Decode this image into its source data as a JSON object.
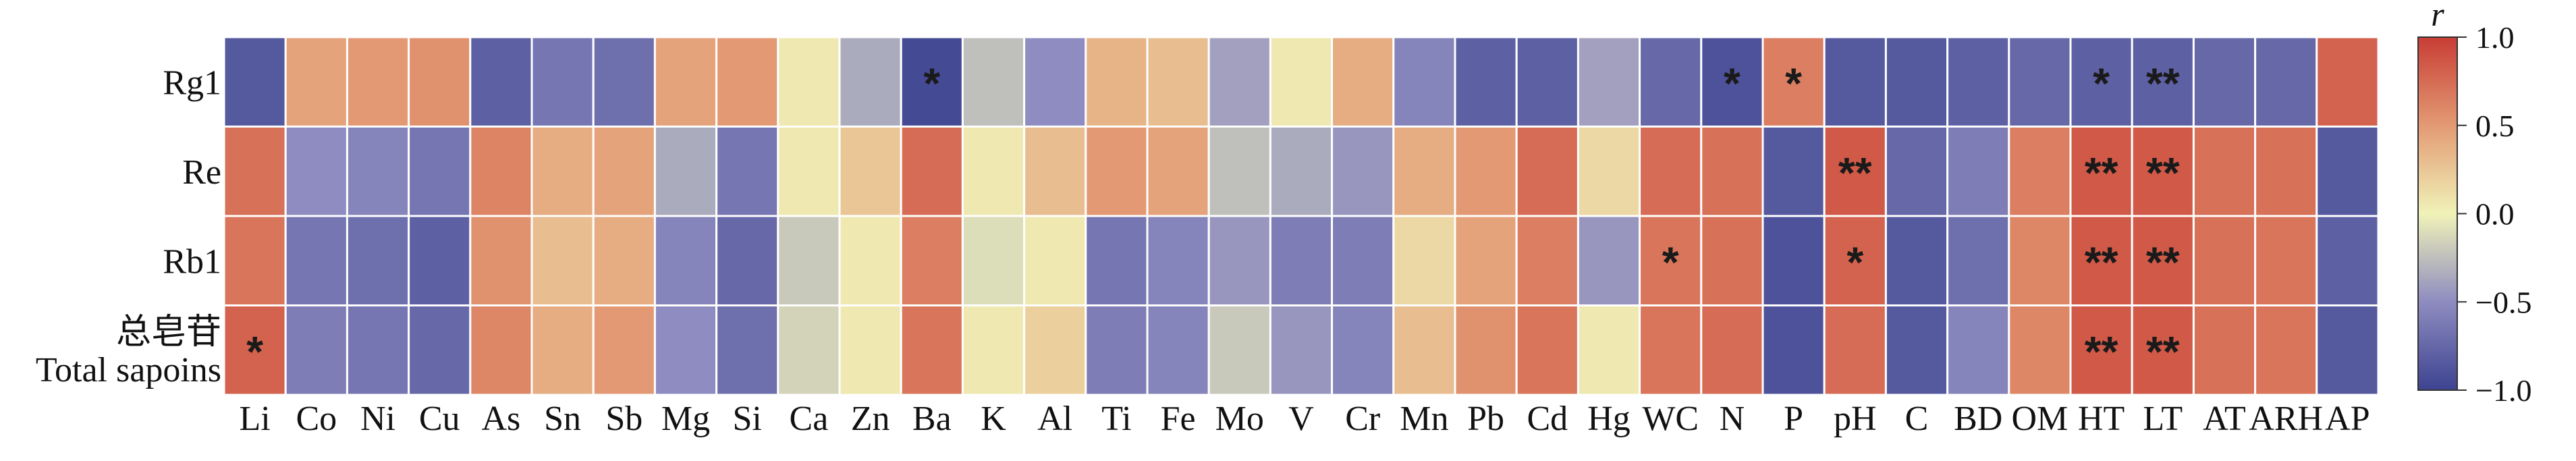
{
  "chart_data": {
    "type": "heatmap",
    "rows": [
      "Rg1",
      "Re",
      "Rb1",
      "总皂苷\nTotal sapoins"
    ],
    "columns": [
      "Li",
      "Co",
      "Ni",
      "Cu",
      "As",
      "Sn",
      "Sb",
      "Mg",
      "Si",
      "Ca",
      "Zn",
      "Ba",
      "K",
      "Al",
      "Ti",
      "Fe",
      "Mo",
      "V",
      "Cr",
      "Mn",
      "Pb",
      "Cd",
      "Hg",
      "WC",
      "N",
      "P",
      "pH",
      "C",
      "BD",
      "OM",
      "HT",
      "LT",
      "AT",
      "ARH",
      "AP"
    ],
    "values": [
      [
        -0.85,
        0.45,
        0.5,
        0.55,
        -0.8,
        -0.65,
        -0.7,
        0.45,
        0.5,
        0.05,
        -0.35,
        -0.95,
        -0.25,
        -0.5,
        0.35,
        0.3,
        -0.4,
        0.05,
        0.4,
        -0.55,
        -0.8,
        -0.8,
        -0.4,
        -0.75,
        -0.9,
        0.65,
        -0.85,
        -0.85,
        -0.8,
        -0.75,
        -0.8,
        -0.8,
        -0.75,
        -0.75,
        0.8
      ],
      [
        0.72,
        -0.5,
        -0.55,
        -0.65,
        0.62,
        0.4,
        0.45,
        -0.35,
        -0.65,
        0.05,
        0.25,
        0.75,
        0.05,
        0.3,
        0.5,
        0.45,
        -0.25,
        -0.35,
        -0.45,
        0.4,
        0.5,
        0.75,
        0.15,
        0.75,
        0.72,
        -0.85,
        0.85,
        -0.75,
        -0.6,
        0.65,
        0.85,
        0.85,
        0.72,
        0.72,
        -0.85
      ],
      [
        0.7,
        -0.65,
        -0.7,
        -0.8,
        0.55,
        0.3,
        0.4,
        -0.55,
        -0.75,
        -0.2,
        0.05,
        0.65,
        -0.1,
        0.05,
        -0.65,
        -0.55,
        -0.45,
        -0.6,
        -0.6,
        0.15,
        0.45,
        0.65,
        -0.45,
        0.7,
        0.72,
        -0.9,
        0.8,
        -0.85,
        -0.7,
        0.6,
        0.85,
        0.85,
        0.72,
        0.7,
        -0.8
      ],
      [
        0.8,
        -0.6,
        -0.65,
        -0.75,
        0.6,
        0.4,
        0.5,
        -0.5,
        -0.7,
        -0.15,
        0.05,
        0.7,
        0.05,
        0.2,
        -0.6,
        -0.55,
        -0.2,
        -0.45,
        -0.55,
        0.3,
        0.55,
        0.7,
        0.05,
        0.7,
        0.75,
        -0.9,
        0.75,
        -0.85,
        -0.55,
        0.6,
        0.85,
        0.85,
        0.72,
        0.7,
        -0.85
      ]
    ],
    "significance": [
      [
        "",
        "",
        "",
        "",
        "",
        "",
        "",
        "",
        "",
        "",
        "",
        "*",
        "",
        "",
        "",
        "",
        "",
        "",
        "",
        "",
        "",
        "",
        "",
        "",
        "*",
        "*",
        "",
        "",
        "",
        "",
        "*",
        "**",
        "",
        "",
        ""
      ],
      [
        "",
        "",
        "",
        "",
        "",
        "",
        "",
        "",
        "",
        "",
        "",
        "",
        "",
        "",
        "",
        "",
        "",
        "",
        "",
        "",
        "",
        "",
        "",
        "",
        "",
        "",
        "**",
        "",
        "",
        "",
        "**",
        "**",
        "",
        "",
        ""
      ],
      [
        "",
        "",
        "",
        "",
        "",
        "",
        "",
        "",
        "",
        "",
        "",
        "",
        "",
        "",
        "",
        "",
        "",
        "",
        "",
        "",
        "",
        "",
        "",
        "*",
        "",
        "",
        "*",
        "",
        "",
        "",
        "**",
        "**",
        "",
        "",
        ""
      ],
      [
        "*",
        "",
        "",
        "",
        "",
        "",
        "",
        "",
        "",
        "",
        "",
        "",
        "",
        "",
        "",
        "",
        "",
        "",
        "",
        "",
        "",
        "",
        "",
        "",
        "",
        "",
        "",
        "",
        "",
        "",
        "**",
        "**",
        "",
        "",
        ""
      ]
    ],
    "colorbar": {
      "label": "r",
      "range": [
        -1.0,
        1.0
      ],
      "ticks": [
        "1.0",
        "0.5",
        "0.0",
        "−0.5",
        "−1.0"
      ],
      "tick_values": [
        1.0,
        0.5,
        0.0,
        -0.5,
        -1.0
      ],
      "colors": [
        "#3d4390",
        "#f0f2b8",
        "#c83d35"
      ]
    }
  }
}
